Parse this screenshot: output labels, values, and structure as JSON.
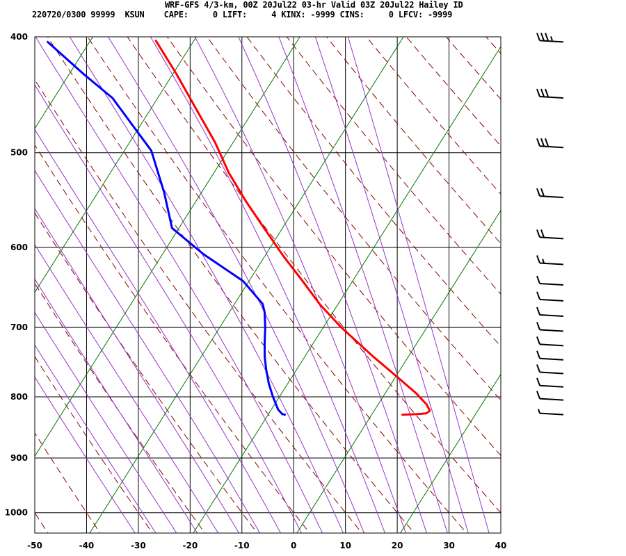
{
  "header": {
    "line1": "WRF-GFS 4/3-km, 00Z 20Jul22 03-hr Valid 03Z 20Jul22 Hailey ID",
    "line2": "220720/0300 99999  KSUN    CAPE:     0 LIFT:     4 KINX: -9999 CINS:     0 LFCV: -9999"
  },
  "colors": {
    "temperature": "#ff0000",
    "dewpoint": "#0000ff",
    "dry_adiabat": "#8b0000",
    "moist_adiabat": "#9933cc",
    "isotherm": "#000000",
    "mixing_ratio": "#007700"
  },
  "chart_data": {
    "type": "line",
    "chart_kind": "skew-T log-p sounding",
    "xlim": [
      -50,
      40
    ],
    "ylim": [
      1040,
      400
    ],
    "y_scale": "log",
    "grid": true,
    "x_ticks": [
      -50,
      -40,
      -30,
      -20,
      -10,
      0,
      10,
      20,
      30,
      40
    ],
    "y_ticks": [
      400,
      500,
      600,
      700,
      800,
      900,
      1000
    ],
    "series": [
      {
        "key": "temperature",
        "color": "#ff0000",
        "points": [
          [
            828,
            21.0
          ],
          [
            827,
            24.0
          ],
          [
            826,
            25.6
          ],
          [
            822,
            26.3
          ],
          [
            812,
            25.7
          ],
          [
            795,
            23.7
          ],
          [
            770,
            20.0
          ],
          [
            740,
            15.3
          ],
          [
            700,
            9.2
          ],
          [
            670,
            5.1
          ],
          [
            640,
            1.7
          ],
          [
            610,
            -2.0
          ],
          [
            580,
            -5.5
          ],
          [
            550,
            -9.1
          ],
          [
            520,
            -12.5
          ],
          [
            490,
            -15.2
          ],
          [
            460,
            -18.8
          ],
          [
            430,
            -22.6
          ],
          [
            403,
            -26.6
          ]
        ]
      },
      {
        "key": "dewpoint",
        "color": "#0000ff",
        "points": [
          [
            828,
            -1.7
          ],
          [
            827,
            -2.2
          ],
          [
            820,
            -3.0
          ],
          [
            800,
            -4.0
          ],
          [
            780,
            -4.8
          ],
          [
            760,
            -5.3
          ],
          [
            740,
            -5.6
          ],
          [
            720,
            -5.6
          ],
          [
            700,
            -5.5
          ],
          [
            680,
            -5.6
          ],
          [
            669,
            -6.0
          ],
          [
            640,
            -9.8
          ],
          [
            608,
            -17.4
          ],
          [
            578,
            -23.5
          ],
          [
            540,
            -25.0
          ],
          [
            498,
            -27.5
          ],
          [
            475,
            -31.0
          ],
          [
            450,
            -35.0
          ],
          [
            430,
            -40.5
          ],
          [
            404,
            -47.5
          ]
        ]
      }
    ],
    "wind_barbs": [
      {
        "p": 404,
        "speed_kt": 35
      },
      {
        "p": 450,
        "speed_kt": 30
      },
      {
        "p": 495,
        "speed_kt": 30
      },
      {
        "p": 545,
        "speed_kt": 20
      },
      {
        "p": 590,
        "speed_kt": 20
      },
      {
        "p": 620,
        "speed_kt": 15
      },
      {
        "p": 645,
        "speed_kt": 10
      },
      {
        "p": 665,
        "speed_kt": 10
      },
      {
        "p": 685,
        "speed_kt": 10
      },
      {
        "p": 705,
        "speed_kt": 10
      },
      {
        "p": 725,
        "speed_kt": 10
      },
      {
        "p": 745,
        "speed_kt": 10
      },
      {
        "p": 765,
        "speed_kt": 10
      },
      {
        "p": 785,
        "speed_kt": 10
      },
      {
        "p": 805,
        "speed_kt": 10
      },
      {
        "p": 828,
        "speed_kt": 5
      }
    ]
  }
}
